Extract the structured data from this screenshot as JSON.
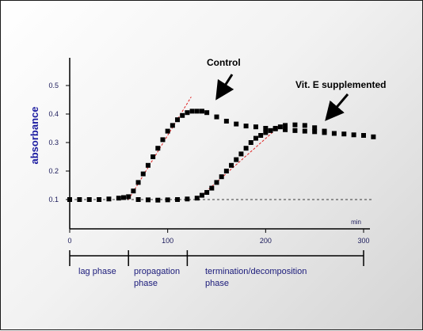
{
  "chart_data": {
    "type": "scatter",
    "ylabel": "absorbance",
    "x_unit_label": "min",
    "xlim": [
      0,
      300
    ],
    "ylim": [
      0.1,
      0.55
    ],
    "xticks": [
      0,
      100,
      200,
      300
    ],
    "yticks": [
      0.1,
      0.2,
      0.3,
      0.4,
      0.5
    ],
    "xtick_labels": [
      "0",
      "100",
      "200",
      "300"
    ],
    "ytick_labels": [
      "0.1",
      "0.2",
      "0.3",
      "0.4",
      "0.5"
    ],
    "grid": false,
    "baseline": {
      "y": 0.1,
      "x_range": [
        0,
        300
      ],
      "style": "dashed"
    },
    "annotations": [
      {
        "text": "Control",
        "points_to": {
          "x": 125,
          "y": 0.42
        }
      },
      {
        "text": "Vit. E supplemented",
        "points_to": {
          "x": 240,
          "y": 0.37
        }
      }
    ],
    "tangent_lines": [
      {
        "x": [
          60,
          124
        ],
        "y": [
          0.1,
          0.46
        ]
      },
      {
        "x": [
          130,
          215
        ],
        "y": [
          0.1,
          0.36
        ]
      }
    ],
    "phases": [
      {
        "label": "lag phase",
        "x_range": [
          0,
          60
        ]
      },
      {
        "label": "propagation phase",
        "x_range": [
          60,
          120
        ]
      },
      {
        "label": "termination/decomposition phase",
        "x_range": [
          120,
          300
        ]
      }
    ],
    "series": [
      {
        "name": "Control",
        "x": [
          0,
          10,
          20,
          30,
          40,
          50,
          55,
          60,
          65,
          70,
          75,
          80,
          85,
          90,
          95,
          100,
          105,
          110,
          115,
          120,
          125,
          130,
          135,
          140,
          150,
          160,
          170,
          180,
          190,
          200,
          210,
          220,
          230,
          240,
          250,
          260,
          270,
          280,
          290,
          300,
          310
        ],
        "y": [
          0.1,
          0.1,
          0.1,
          0.1,
          0.102,
          0.105,
          0.107,
          0.11,
          0.13,
          0.16,
          0.19,
          0.22,
          0.25,
          0.28,
          0.31,
          0.34,
          0.36,
          0.38,
          0.395,
          0.405,
          0.41,
          0.41,
          0.41,
          0.405,
          0.39,
          0.375,
          0.365,
          0.358,
          0.355,
          0.35,
          0.348,
          0.345,
          0.342,
          0.34,
          0.338,
          0.335,
          0.332,
          0.33,
          0.327,
          0.325,
          0.32
        ]
      },
      {
        "name": "Vit. E supplemented",
        "x": [
          70,
          80,
          90,
          100,
          110,
          120,
          130,
          135,
          140,
          145,
          150,
          155,
          160,
          165,
          170,
          175,
          180,
          185,
          190,
          195,
          200,
          205,
          210,
          215,
          220,
          230,
          240,
          250,
          260
        ],
        "y": [
          0.1,
          0.099,
          0.098,
          0.099,
          0.1,
          0.102,
          0.105,
          0.115,
          0.125,
          0.14,
          0.16,
          0.18,
          0.2,
          0.22,
          0.24,
          0.26,
          0.28,
          0.3,
          0.315,
          0.325,
          0.335,
          0.342,
          0.35,
          0.355,
          0.36,
          0.362,
          0.36,
          0.352,
          0.34
        ]
      }
    ]
  }
}
